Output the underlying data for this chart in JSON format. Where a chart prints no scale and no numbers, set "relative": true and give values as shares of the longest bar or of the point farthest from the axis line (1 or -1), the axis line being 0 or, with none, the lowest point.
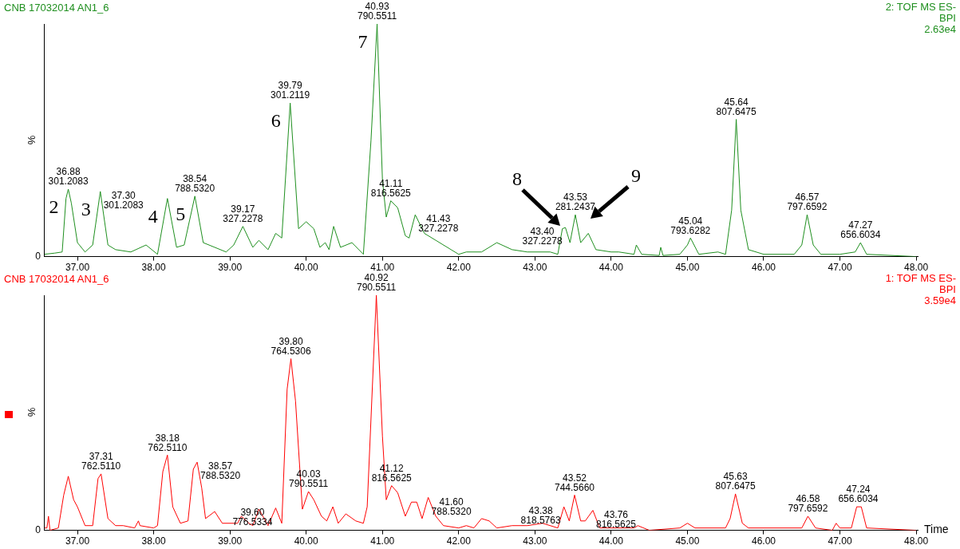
{
  "chart_data": [
    {
      "type": "line",
      "title": "CNB 17032014 AN1_6",
      "subtitle": "2: TOF MS ES-\nBPI\n2.63e4",
      "ylabel": "%",
      "relative": true,
      "legend": false,
      "grid": false,
      "marker": "none",
      "line_style": "solid",
      "xlim": [
        36.56,
        48.02
      ],
      "xticks": [
        {
          "value": 37,
          "label": "37.00"
        },
        {
          "value": 38,
          "label": "38.00"
        },
        {
          "value": 39,
          "label": "39.00"
        },
        {
          "value": 40,
          "label": "40.00"
        },
        {
          "value": 41,
          "label": "41.00"
        },
        {
          "value": 42,
          "label": "42.00"
        },
        {
          "value": 43,
          "label": "43.00"
        },
        {
          "value": 44,
          "label": "44.00"
        },
        {
          "value": 45,
          "label": "45.00"
        },
        {
          "value": 46,
          "label": "46.00"
        },
        {
          "value": 47,
          "label": "47.00"
        },
        {
          "value": 48,
          "label": "48.00"
        }
      ],
      "series": [
        {
          "color": "#1f8f1f",
          "x": [
            36.56,
            36.7,
            36.8,
            36.85,
            36.88,
            36.92,
            37.0,
            37.1,
            37.2,
            37.3,
            37.4,
            37.5,
            37.7,
            37.9,
            38.05,
            38.18,
            38.3,
            38.4,
            38.54,
            38.65,
            38.8,
            38.95,
            39.05,
            39.17,
            39.3,
            39.38,
            39.5,
            39.6,
            39.68,
            39.79,
            39.9,
            40.0,
            40.1,
            40.18,
            40.25,
            40.3,
            40.36,
            40.45,
            40.6,
            40.75,
            40.85,
            40.93,
            41.0,
            41.05,
            41.11,
            41.2,
            41.3,
            41.35,
            41.43,
            41.55,
            41.7,
            41.9,
            42.0,
            42.1,
            42.3,
            42.5,
            42.7,
            42.9,
            43.2,
            43.3,
            43.36,
            43.4,
            43.46,
            43.53,
            43.6,
            43.7,
            43.8,
            44.0,
            44.1,
            44.3,
            44.33,
            44.4,
            44.63,
            44.65,
            44.68,
            44.9,
            45.0,
            45.04,
            45.15,
            45.4,
            45.5,
            45.58,
            45.64,
            45.7,
            45.8,
            46.0,
            46.4,
            46.5,
            46.57,
            46.65,
            46.75,
            47.0,
            47.2,
            47.27,
            47.35,
            48.0
          ],
          "values": [
            0.01,
            0.015,
            0.02,
            0.25,
            0.29,
            0.23,
            0.06,
            0.02,
            0.05,
            0.28,
            0.05,
            0.03,
            0.02,
            0.05,
            0.01,
            0.25,
            0.04,
            0.05,
            0.26,
            0.06,
            0.04,
            0.02,
            0.05,
            0.13,
            0.04,
            0.07,
            0.03,
            0.1,
            0.08,
            0.66,
            0.12,
            0.15,
            0.12,
            0.04,
            0.06,
            0.03,
            0.13,
            0.04,
            0.06,
            0.01,
            0.5,
            1.0,
            0.33,
            0.17,
            0.24,
            0.21,
            0.09,
            0.08,
            0.18,
            0.1,
            0.07,
            0.03,
            0.01,
            0.02,
            0.02,
            0.06,
            0.03,
            0.02,
            0.02,
            0.01,
            0.12,
            0.125,
            0.06,
            0.18,
            0.06,
            0.1,
            0.03,
            0.02,
            0.02,
            0.01,
            0.05,
            0.01,
            0.005,
            0.04,
            0.005,
            0.01,
            0.05,
            0.08,
            0.01,
            0.02,
            0.01,
            0.2,
            0.59,
            0.2,
            0.03,
            0.01,
            0.01,
            0.05,
            0.18,
            0.05,
            0.01,
            0.01,
            0.02,
            0.06,
            0.01,
            0.0
          ]
        }
      ],
      "annotations": [
        "0",
        {
          "text": "36.88\n301.2083",
          "x": 36.88,
          "y": 0.29
        },
        {
          "text": "37.30\n301.2083",
          "x": 37.3,
          "y": 0.28
        },
        {
          "text": "38.54\n788.5320",
          "x": 38.54,
          "y": 0.26
        },
        {
          "text": "39.17\n327.2278",
          "x": 39.17,
          "y": 0.13
        },
        {
          "text": "39.79\n301.2119",
          "x": 39.79,
          "y": 0.66
        },
        {
          "text": "40.93\n790.5511",
          "x": 40.93,
          "y": 1.0
        },
        {
          "text": "41.11\n816.5625",
          "x": 41.11,
          "y": 0.24
        },
        {
          "text": "41.43\n327.2278",
          "x": 41.43,
          "y": 0.18
        },
        {
          "text": "43.40\n327.2278",
          "x": 43.4,
          "y": 0.125
        },
        {
          "text": "43.53\n281.2437",
          "x": 43.53,
          "y": 0.18
        },
        {
          "text": "45.04\n793.6282",
          "x": 45.04,
          "y": 0.08
        },
        {
          "text": "45.64\n807.6475",
          "x": 45.64,
          "y": 0.59
        },
        {
          "text": "46.57\n797.6592",
          "x": 46.57,
          "y": 0.18
        },
        {
          "text": "47.27\n656.6034",
          "x": 47.27,
          "y": 0.06
        },
        {
          "text": "2",
          "x": 36.88,
          "y": 0.29
        },
        {
          "text": "3",
          "x": 37.3,
          "y": 0.28
        },
        {
          "text": "4",
          "x": 38.18,
          "y": 0.25
        },
        {
          "text": "5",
          "x": 38.54,
          "y": 0.26
        },
        {
          "text": "6",
          "x": 39.79,
          "y": 0.66
        },
        {
          "text": "7",
          "x": 40.93,
          "y": 1.0
        },
        "8",
        "9"
      ]
    },
    {
      "type": "line",
      "title": "CNB 17032014 AN1_6",
      "subtitle": "1: TOF MS ES-\nBPI\n3.59e4",
      "xlabel": "Time",
      "ylabel": "%",
      "relative": true,
      "legend": false,
      "grid": false,
      "marker": "none",
      "line_style": "solid",
      "xlim": [
        36.56,
        48.02
      ],
      "xticks": [
        {
          "value": 37,
          "label": "37.00"
        },
        {
          "value": 38,
          "label": "38.00"
        },
        {
          "value": 39,
          "label": "39.00"
        },
        {
          "value": 40,
          "label": "40.00"
        },
        {
          "value": 41,
          "label": "41.00"
        },
        {
          "value": 42,
          "label": "42.00"
        },
        {
          "value": 43,
          "label": "43.00"
        },
        {
          "value": 44,
          "label": "44.00"
        },
        {
          "value": 45,
          "label": "45.00"
        },
        {
          "value": 46,
          "label": "46.00"
        },
        {
          "value": 47,
          "label": "47.00"
        },
        {
          "value": 48,
          "label": "48.00"
        }
      ],
      "series": [
        {
          "color": "#ff0000",
          "x": [
            36.56,
            36.6,
            36.62,
            36.64,
            36.75,
            36.82,
            36.88,
            36.95,
            37.0,
            37.1,
            37.2,
            37.27,
            37.31,
            37.4,
            37.5,
            37.6,
            37.75,
            37.8,
            37.82,
            38.0,
            38.05,
            38.12,
            38.18,
            38.25,
            38.35,
            38.45,
            38.52,
            38.57,
            38.63,
            38.68,
            38.8,
            38.9,
            39.1,
            39.15,
            39.25,
            39.3,
            39.38,
            39.5,
            39.6,
            39.68,
            39.75,
            39.8,
            39.86,
            39.95,
            40.03,
            40.1,
            40.2,
            40.27,
            40.35,
            40.42,
            40.52,
            40.65,
            40.75,
            40.8,
            40.92,
            41.0,
            41.05,
            41.12,
            41.2,
            41.3,
            41.38,
            41.45,
            41.52,
            41.6,
            41.7,
            41.8,
            42.0,
            42.1,
            42.2,
            42.3,
            42.4,
            42.5,
            42.7,
            42.9,
            43.1,
            43.3,
            43.38,
            43.45,
            43.52,
            43.6,
            43.66,
            43.76,
            43.85,
            44.0,
            44.3,
            44.35,
            44.5,
            44.9,
            45.0,
            45.1,
            45.5,
            45.56,
            45.63,
            45.72,
            45.8,
            46.5,
            46.58,
            46.68,
            46.9,
            46.95,
            47.0,
            47.15,
            47.22,
            47.28,
            47.35,
            48.0
          ],
          "values": [
            0.01,
            0.01,
            0.06,
            0.0,
            0.01,
            0.15,
            0.23,
            0.13,
            0.1,
            0.02,
            0.02,
            0.22,
            0.24,
            0.05,
            0.02,
            0.02,
            0.01,
            0.04,
            0.02,
            0.01,
            0.02,
            0.25,
            0.32,
            0.1,
            0.03,
            0.04,
            0.26,
            0.29,
            0.18,
            0.05,
            0.08,
            0.03,
            0.03,
            0.06,
            0.03,
            0.02,
            0.09,
            0.02,
            0.095,
            0.03,
            0.6,
            0.73,
            0.55,
            0.09,
            0.165,
            0.13,
            0.06,
            0.04,
            0.1,
            0.03,
            0.07,
            0.04,
            0.03,
            0.1,
            1.0,
            0.4,
            0.13,
            0.19,
            0.16,
            0.06,
            0.12,
            0.12,
            0.05,
            0.14,
            0.06,
            0.02,
            0.01,
            0.02,
            0.01,
            0.05,
            0.04,
            0.01,
            0.02,
            0.02,
            0.03,
            0.01,
            0.1,
            0.04,
            0.15,
            0.04,
            0.04,
            0.085,
            0.01,
            0.01,
            0.01,
            0.02,
            0.0,
            0.01,
            0.03,
            0.01,
            0.01,
            0.05,
            0.155,
            0.03,
            0.01,
            0.01,
            0.06,
            0.01,
            0.0,
            0.03,
            0.01,
            0.01,
            0.1,
            0.1,
            0.01,
            0.0
          ]
        }
      ],
      "annotations": [
        "0",
        {
          "text": "37.31\n762.5110",
          "x": 37.31,
          "y": 0.24
        },
        {
          "text": "38.18\n762.5110",
          "x": 38.18,
          "y": 0.32
        },
        {
          "text": "38.57\n788.5320",
          "x": 38.57,
          "y": 0.29
        },
        {
          "text": "39.60\n776.5334",
          "x": 39.6,
          "y": 0.095
        },
        {
          "text": "39.80\n764.5306",
          "x": 39.8,
          "y": 0.73
        },
        {
          "text": "40.03\n790.5511",
          "x": 40.03,
          "y": 0.165
        },
        {
          "text": "40.92\n790.5511",
          "x": 40.92,
          "y": 1.0
        },
        {
          "text": "41.12\n816.5625",
          "x": 41.12,
          "y": 0.19
        },
        {
          "text": "41.60\n788.5320",
          "x": 41.6,
          "y": 0.14
        },
        {
          "text": "43.38\n818.5763",
          "x": 43.38,
          "y": 0.1
        },
        {
          "text": "43.52\n744.5660",
          "x": 43.52,
          "y": 0.15
        },
        {
          "text": "43.76\n816.5625",
          "x": 43.76,
          "y": 0.085
        },
        {
          "text": "45.63\n807.6475",
          "x": 45.63,
          "y": 0.155
        },
        {
          "text": "46.58\n797.6592",
          "x": 46.58,
          "y": 0.06
        },
        {
          "text": "47.24\n656.6034",
          "x": 47.24,
          "y": 0.1
        }
      ]
    }
  ]
}
